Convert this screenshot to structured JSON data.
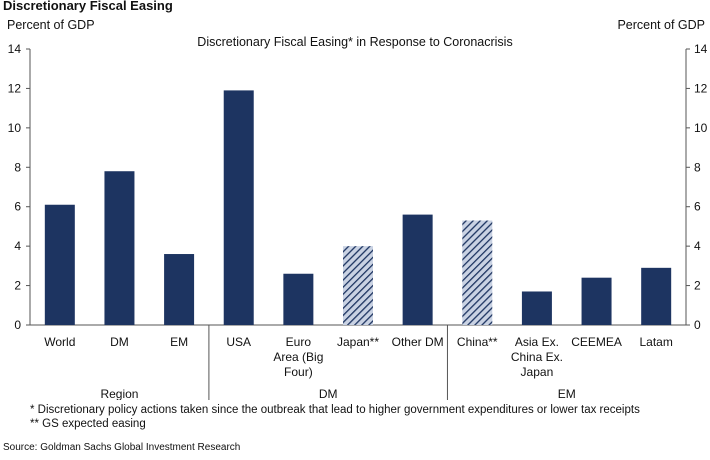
{
  "header": {
    "title": "Discretionary Fiscal Easing",
    "y_label_left": "Percent of GDP",
    "y_label_right": "Percent of GDP"
  },
  "chart_data": {
    "type": "bar",
    "title": "Discretionary Fiscal Easing* in Response to Coronacrisis",
    "xlabel": "",
    "ylabel": "Percent of GDP",
    "ylim": [
      0,
      14
    ],
    "yticks": [
      0,
      2,
      4,
      6,
      8,
      10,
      12,
      14
    ],
    "grid": false,
    "categories": [
      {
        "label": [
          "World"
        ],
        "value": 6.1,
        "style": "solid"
      },
      {
        "label": [
          "DM"
        ],
        "value": 7.8,
        "style": "solid"
      },
      {
        "label": [
          "EM"
        ],
        "value": 3.6,
        "style": "solid"
      },
      {
        "label": [
          "USA"
        ],
        "value": 11.9,
        "style": "solid"
      },
      {
        "label": [
          "Euro",
          "Area (Big",
          "Four)"
        ],
        "value": 2.6,
        "style": "solid"
      },
      {
        "label": [
          "Japan**"
        ],
        "value": 4.0,
        "style": "hatched"
      },
      {
        "label": [
          "Other DM"
        ],
        "value": 5.6,
        "style": "solid"
      },
      {
        "label": [
          "China**"
        ],
        "value": 5.3,
        "style": "hatched"
      },
      {
        "label": [
          "Asia Ex.",
          "China Ex.",
          "Japan"
        ],
        "value": 1.7,
        "style": "solid"
      },
      {
        "label": [
          "CEEMEA"
        ],
        "value": 2.4,
        "style": "solid"
      },
      {
        "label": [
          "Latam"
        ],
        "value": 2.9,
        "style": "solid"
      }
    ],
    "groups": [
      {
        "name": "Region",
        "members": [
          0,
          1,
          2
        ]
      },
      {
        "name": "DM",
        "members": [
          3,
          4,
          5,
          6
        ]
      },
      {
        "name": "EM",
        "members": [
          7,
          8,
          9,
          10
        ]
      }
    ],
    "colors": {
      "bar": "#1d3461",
      "hatch_bg": "#c9d2e3",
      "axis": "#555555"
    }
  },
  "footnotes": {
    "note1": "* Discretionary policy actions taken since the outbreak that lead to higher government expenditures or lower tax receipts",
    "note2": "** GS expected easing"
  },
  "source": "Source: Goldman Sachs Global Investment Research"
}
